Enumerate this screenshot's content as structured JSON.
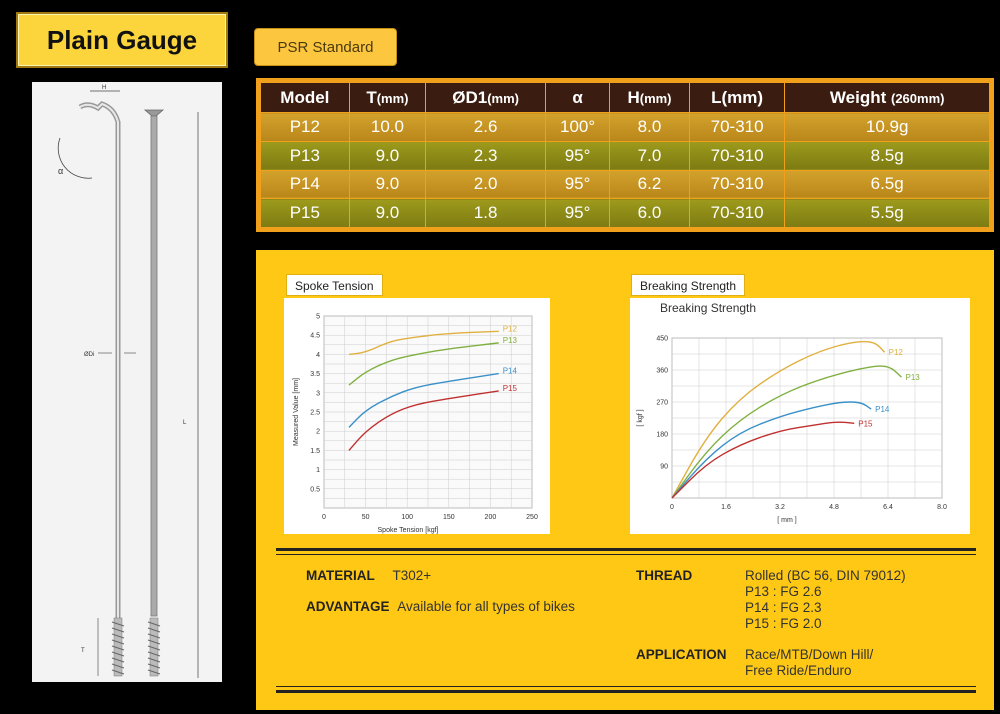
{
  "title": "Plain Gauge",
  "standard_button": "PSR Standard",
  "drawing": {
    "labels": {
      "h": "H",
      "alpha": "α",
      "od": "ØDi",
      "l": "L",
      "t": "T"
    }
  },
  "spec_table": {
    "headers": [
      {
        "main": "Model",
        "unit": ""
      },
      {
        "main": "T",
        "unit": "(mm)"
      },
      {
        "main": "ØD1",
        "unit": "(mm)"
      },
      {
        "main": "α",
        "unit": ""
      },
      {
        "main": "H",
        "unit": "(mm)"
      },
      {
        "main": "L(mm)",
        "unit": ""
      },
      {
        "main": "Weight ",
        "unit": "(260mm)"
      }
    ],
    "rows": [
      [
        "P12",
        "10.0",
        "2.6",
        "100°",
        "8.0",
        "70-310",
        "10.9g"
      ],
      [
        "P13",
        "9.0",
        "2.3",
        "95°",
        "7.0",
        "70-310",
        "8.5g"
      ],
      [
        "P14",
        "9.0",
        "2.0",
        "95°",
        "6.2",
        "70-310",
        "6.5g"
      ],
      [
        "P15",
        "9.0",
        "1.8",
        "95°",
        "6.0",
        "70-310",
        "5.5g"
      ]
    ]
  },
  "chart_data": [
    {
      "type": "line",
      "label": "Spoke Tension",
      "title": "",
      "xlabel": "Spoke Tension [kgf]",
      "ylabel": "Measured Value [mm]",
      "xlim": [
        0,
        250
      ],
      "ylim": [
        0,
        5
      ],
      "xticks": [
        "0",
        "50",
        "100",
        "150",
        "200",
        "250"
      ],
      "yticks": [
        "0.5",
        "1",
        "1.5",
        "2",
        "2.5",
        "3",
        "3.5",
        "4",
        "4.5",
        "5"
      ],
      "grid": true,
      "series": [
        {
          "name": "P12",
          "color": "#e0b040",
          "x": [
            30,
            50,
            80,
            110,
            150,
            210
          ],
          "y": [
            4.0,
            4.05,
            4.35,
            4.45,
            4.55,
            4.6
          ]
        },
        {
          "name": "P13",
          "color": "#80b040",
          "x": [
            30,
            50,
            80,
            110,
            150,
            210
          ],
          "y": [
            3.2,
            3.55,
            3.85,
            4.0,
            4.15,
            4.3
          ]
        },
        {
          "name": "P14",
          "color": "#3a90c8",
          "x": [
            30,
            50,
            80,
            110,
            150,
            210
          ],
          "y": [
            2.1,
            2.55,
            2.9,
            3.15,
            3.3,
            3.5
          ]
        },
        {
          "name": "P15",
          "color": "#c03030",
          "x": [
            30,
            50,
            80,
            110,
            150,
            210
          ],
          "y": [
            1.5,
            2.0,
            2.45,
            2.7,
            2.85,
            3.05
          ]
        }
      ]
    },
    {
      "type": "line",
      "label": "Breaking Strength",
      "title": "Breaking Strength",
      "xlabel": "[ mm ]",
      "ylabel": "[ kgf ]",
      "xlim": [
        0,
        8.0
      ],
      "ylim": [
        0,
        450
      ],
      "xticks": [
        "0",
        "1.6",
        "3.2",
        "4.8",
        "6.4",
        "8.0"
      ],
      "yticks": [
        "90",
        "180",
        "270",
        "360",
        "450"
      ],
      "grid": true,
      "series": [
        {
          "name": "P12",
          "color": "#e0b040",
          "x": [
            0,
            1.0,
            2.0,
            3.2,
            4.4,
            5.4,
            6.0,
            6.3
          ],
          "y": [
            0,
            170,
            280,
            360,
            415,
            440,
            440,
            410
          ]
        },
        {
          "name": "P13",
          "color": "#80b040",
          "x": [
            0,
            1.0,
            2.0,
            3.2,
            4.4,
            5.6,
            6.4,
            6.8
          ],
          "y": [
            0,
            130,
            220,
            290,
            335,
            365,
            375,
            340
          ]
        },
        {
          "name": "P14",
          "color": "#3a90c8",
          "x": [
            0,
            1.0,
            2.0,
            3.2,
            4.2,
            5.0,
            5.6,
            5.9
          ],
          "y": [
            0,
            110,
            185,
            230,
            255,
            270,
            270,
            250
          ]
        },
        {
          "name": "P15",
          "color": "#c03030",
          "x": [
            0,
            1.0,
            2.0,
            3.2,
            4.2,
            4.9,
            5.4
          ],
          "y": [
            0,
            95,
            150,
            190,
            205,
            215,
            210
          ]
        }
      ]
    }
  ],
  "info": {
    "material_label": "MATERIAL",
    "material_value": "T302+",
    "advantage_label": "ADVANTAGE",
    "advantage_value": "Available for all types of bikes",
    "thread_label": "THREAD",
    "thread_lines": [
      "Rolled (BC 56, DIN 79012)",
      "P13 : FG 2.6",
      "P14 : FG 2.3",
      "P15 : FG 2.0"
    ],
    "application_label": "APPLICATION",
    "application_lines": [
      "Race/MTB/Down Hill/",
      "Free Ride/Enduro"
    ]
  }
}
